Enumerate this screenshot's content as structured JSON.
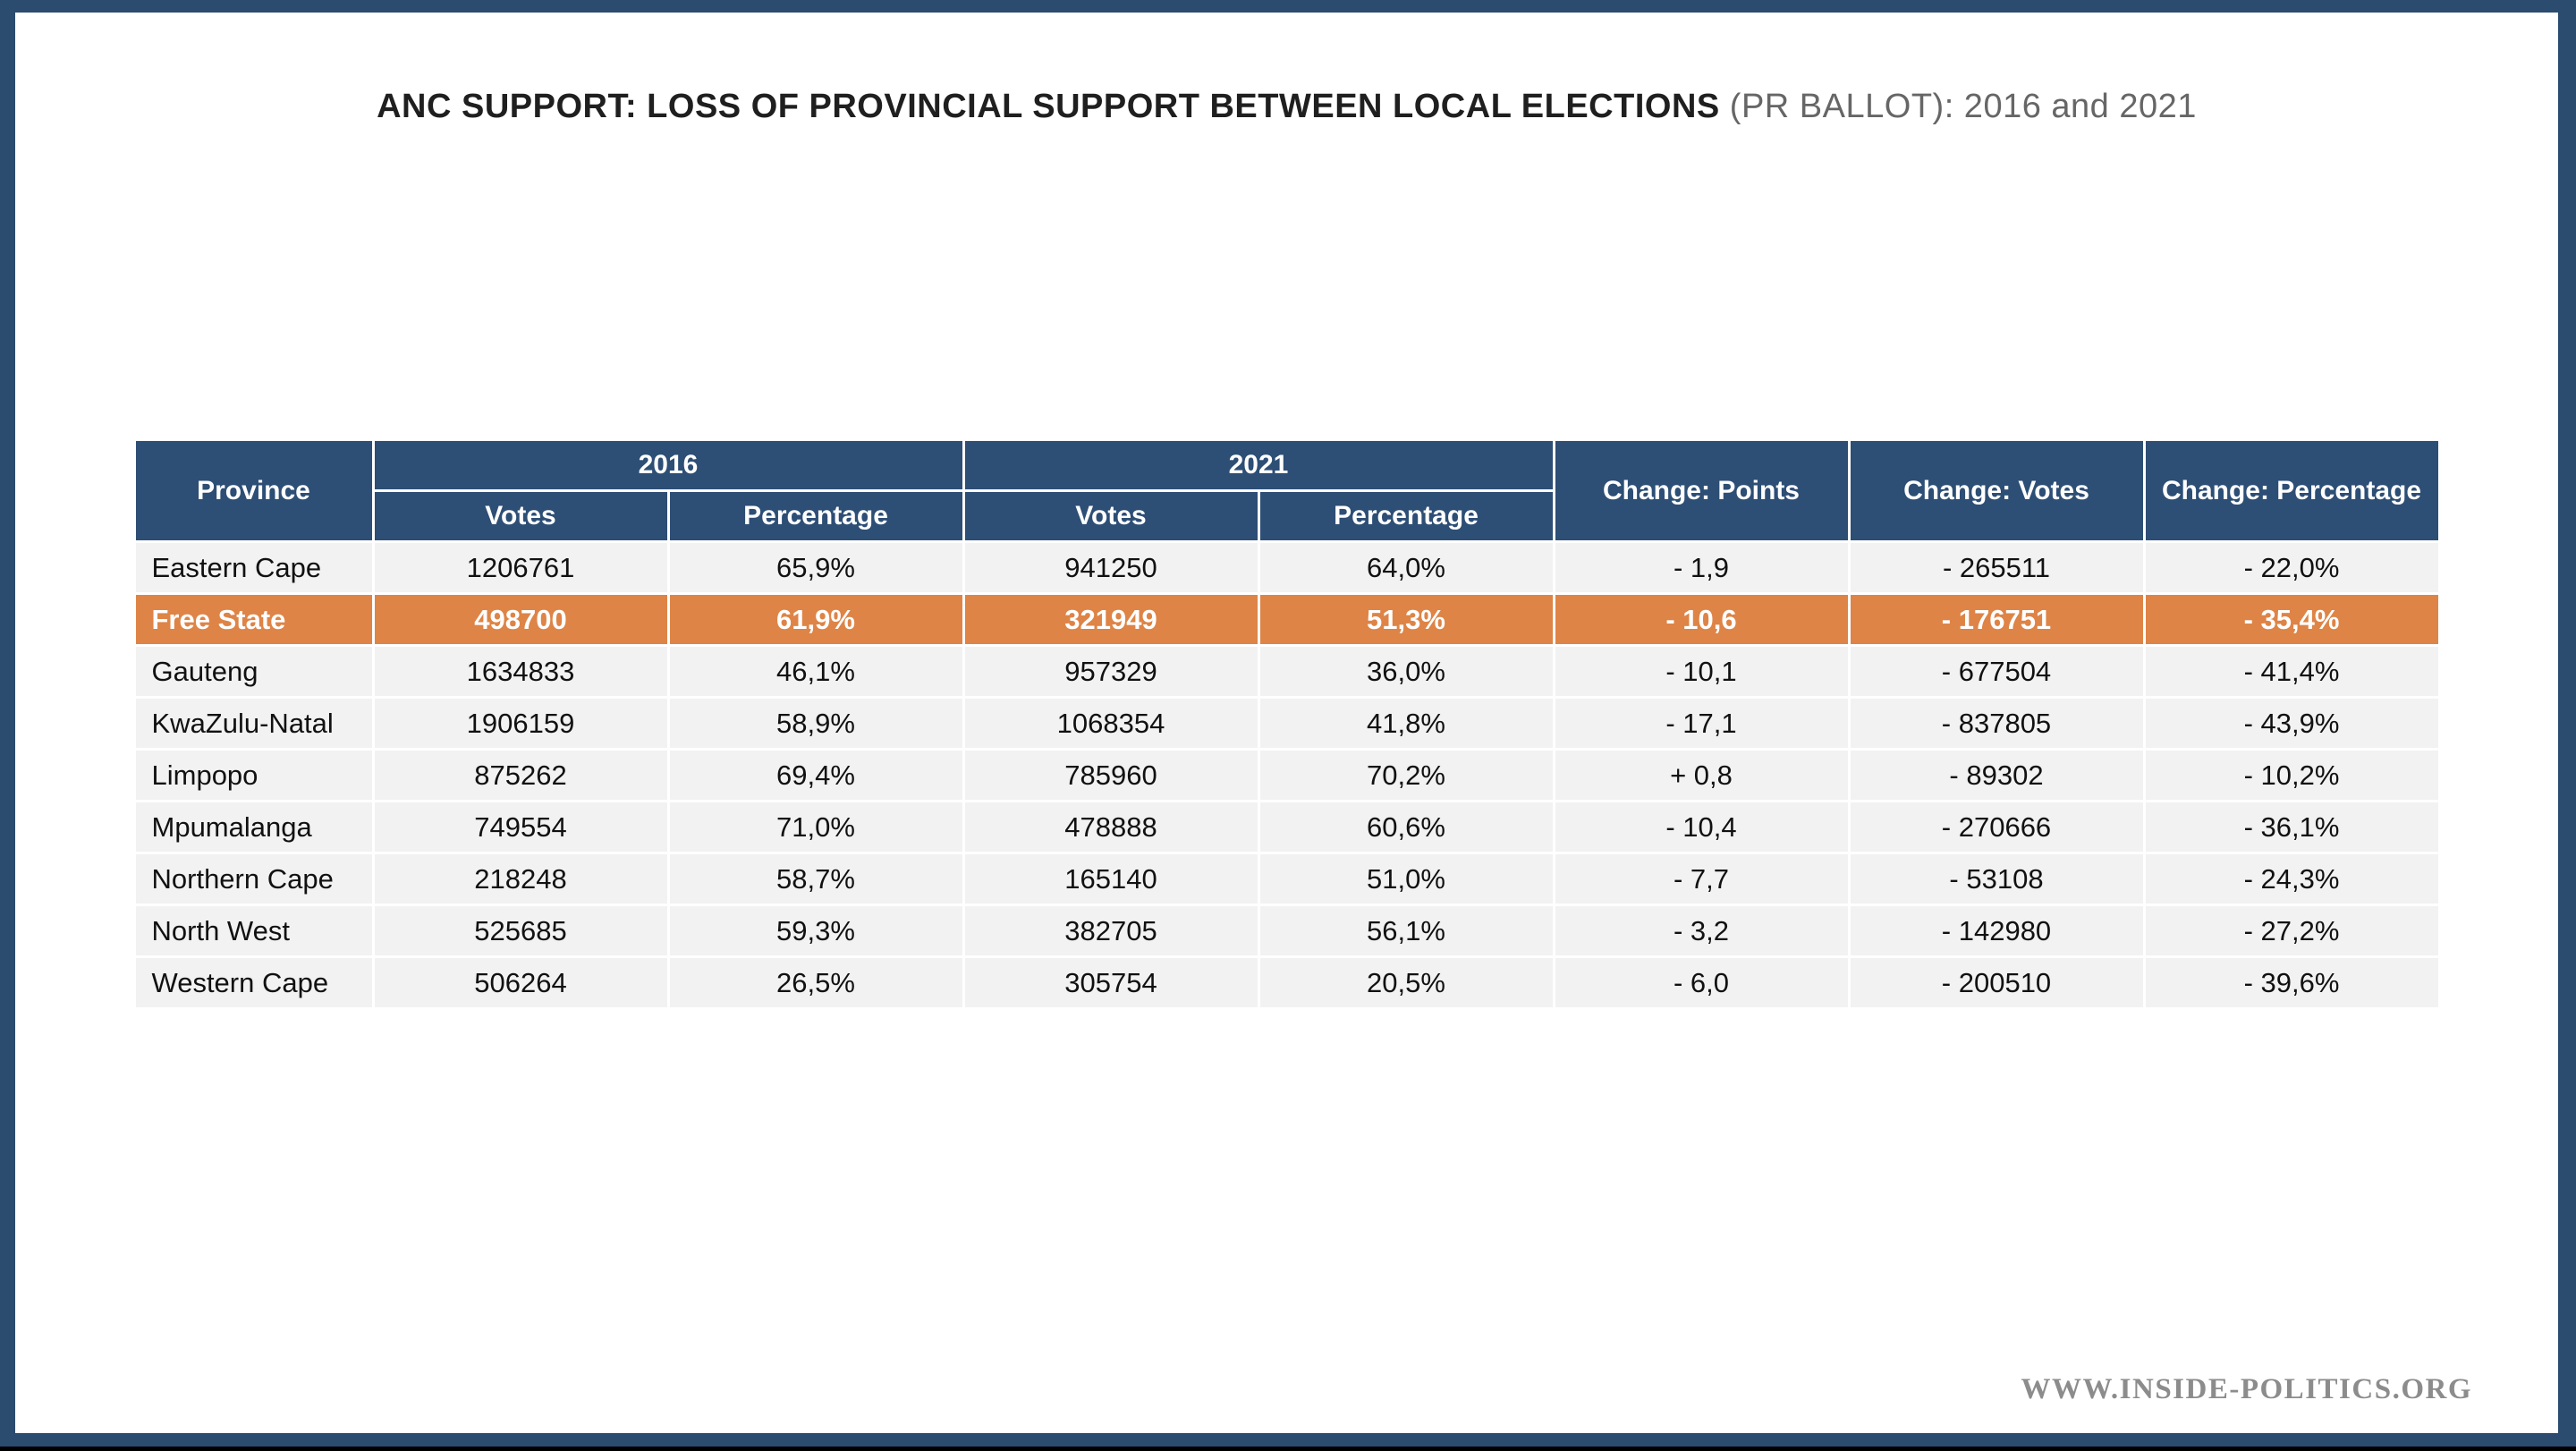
{
  "page": {
    "frame_color": "#2B4B6F",
    "bottom_bar_color": "#000000",
    "background": "#FFFFFF"
  },
  "title": {
    "main": "ANC SUPPORT: LOSS OF PROVINCIAL SUPPORT BETWEEN LOCAL ELECTIONS",
    "suffix": " (PR BALLOT): 2016 and 2021"
  },
  "watermark": {
    "text": "WWW.INSIDE-POLITICS.ORG",
    "color": "#8C8C8C"
  },
  "colors": {
    "header_navy": "#2D4E75",
    "highlight_orange": "#DE8446",
    "row_grey": "#F2F2F2",
    "body_text": "#111111",
    "title_main_text": "#1F1F1F",
    "title_suffix_text": "#666666"
  },
  "table": {
    "header": {
      "province": "Province",
      "group_2016": "2016",
      "group_2021": "2021",
      "votes_2016_label": "Votes",
      "percentage_2016_label": "Percentage",
      "votes_2021_label": "Votes",
      "percentage_2021_label": "Percentage",
      "change_points": "Change: Points",
      "change_votes": "Change: Votes",
      "change_percentage": "Change: Percentage"
    },
    "rows": [
      {
        "province": "Eastern Cape",
        "votes_2016": "1206761",
        "pct_2016": "65,9%",
        "votes_2021": "941250",
        "pct_2021": "64,0%",
        "change_points": "- 1,9",
        "change_votes": "- 265511",
        "change_pct": "- 22,0%",
        "highlight": false
      },
      {
        "province": "Free State",
        "votes_2016": "498700",
        "pct_2016": "61,9%",
        "votes_2021": "321949",
        "pct_2021": "51,3%",
        "change_points": "- 10,6",
        "change_votes": "- 176751",
        "change_pct": "- 35,4%",
        "highlight": true
      },
      {
        "province": "Gauteng",
        "votes_2016": "1634833",
        "pct_2016": "46,1%",
        "votes_2021": "957329",
        "pct_2021": "36,0%",
        "change_points": "- 10,1",
        "change_votes": "- 677504",
        "change_pct": "- 41,4%",
        "highlight": false
      },
      {
        "province": "KwaZulu-Natal",
        "votes_2016": "1906159",
        "pct_2016": "58,9%",
        "votes_2021": "1068354",
        "pct_2021": "41,8%",
        "change_points": "- 17,1",
        "change_votes": "- 837805",
        "change_pct": "- 43,9%",
        "highlight": false
      },
      {
        "province": "Limpopo",
        "votes_2016": "875262",
        "pct_2016": "69,4%",
        "votes_2021": "785960",
        "pct_2021": "70,2%",
        "change_points": "+ 0,8",
        "change_votes": "- 89302",
        "change_pct": "- 10,2%",
        "highlight": false
      },
      {
        "province": "Mpumalanga",
        "votes_2016": "749554",
        "pct_2016": "71,0%",
        "votes_2021": "478888",
        "pct_2021": "60,6%",
        "change_points": "- 10,4",
        "change_votes": "- 270666",
        "change_pct": "- 36,1%",
        "highlight": false
      },
      {
        "province": "Northern Cape",
        "votes_2016": "218248",
        "pct_2016": "58,7%",
        "votes_2021": "165140",
        "pct_2021": "51,0%",
        "change_points": "- 7,7",
        "change_votes": "- 53108",
        "change_pct": "- 24,3%",
        "highlight": false
      },
      {
        "province": "North West",
        "votes_2016": "525685",
        "pct_2016": "59,3%",
        "votes_2021": "382705",
        "pct_2021": "56,1%",
        "change_points": "- 3,2",
        "change_votes": "- 142980",
        "change_pct": "- 27,2%",
        "highlight": false
      },
      {
        "province": "Western Cape",
        "votes_2016": "506264",
        "pct_2016": "26,5%",
        "votes_2021": "305754",
        "pct_2021": "20,5%",
        "change_points": "- 6,0",
        "change_votes": "- 200510",
        "change_pct": "- 39,6%",
        "highlight": false
      }
    ]
  },
  "chart_data": {
    "type": "table",
    "title": "ANC SUPPORT: LOSS OF PROVINCIAL SUPPORT BETWEEN LOCAL ELECTIONS (PR BALLOT): 2016 and 2021",
    "columns": [
      "Province",
      "2016 Votes",
      "2016 Percentage",
      "2021 Votes",
      "2021 Percentage",
      "Change: Points",
      "Change: Votes",
      "Change: Percentage"
    ],
    "rows": [
      [
        "Eastern Cape",
        1206761,
        65.9,
        941250,
        64.0,
        -1.9,
        -265511,
        -22.0
      ],
      [
        "Free State",
        498700,
        61.9,
        321949,
        51.3,
        -10.6,
        -176751,
        -35.4
      ],
      [
        "Gauteng",
        1634833,
        46.1,
        957329,
        36.0,
        -10.1,
        -677504,
        -41.4
      ],
      [
        "KwaZulu-Natal",
        1906159,
        58.9,
        1068354,
        41.8,
        -17.1,
        -837805,
        -43.9
      ],
      [
        "Limpopo",
        875262,
        69.4,
        785960,
        70.2,
        0.8,
        -89302,
        -10.2
      ],
      [
        "Mpumalanga",
        749554,
        71.0,
        478888,
        60.6,
        -10.4,
        -270666,
        -36.1
      ],
      [
        "Northern Cape",
        218248,
        58.7,
        165140,
        51.0,
        -7.7,
        -53108,
        -24.3
      ],
      [
        "North West",
        525685,
        59.3,
        382705,
        56.1,
        -3.2,
        -142980,
        -27.2
      ],
      [
        "Western Cape",
        506264,
        26.5,
        305754,
        20.5,
        -6.0,
        -200510,
        -39.6
      ]
    ],
    "highlighted_row": "Free State",
    "notes": "Display strings use comma as decimal separator; negative changes shown with leading minus and space"
  }
}
